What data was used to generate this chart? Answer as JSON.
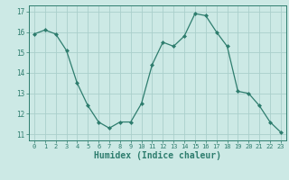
{
  "x": [
    0,
    1,
    2,
    3,
    4,
    5,
    6,
    7,
    8,
    9,
    10,
    11,
    12,
    13,
    14,
    15,
    16,
    17,
    18,
    19,
    20,
    21,
    22,
    23
  ],
  "y": [
    15.9,
    16.1,
    15.9,
    15.1,
    13.5,
    12.4,
    11.6,
    11.3,
    11.6,
    11.6,
    12.5,
    14.4,
    15.5,
    15.3,
    15.8,
    16.9,
    16.8,
    16.0,
    15.3,
    13.1,
    13.0,
    12.4,
    11.6,
    11.1
  ],
  "line_color": "#2e7d6e",
  "marker": "D",
  "marker_size": 2.0,
  "bg_color": "#cce9e5",
  "grid_color": "#aacfcb",
  "tick_color": "#2e7d6e",
  "xlabel": "Humidex (Indice chaleur)",
  "xlabel_fontsize": 7,
  "yticks": [
    11,
    12,
    13,
    14,
    15,
    16,
    17
  ],
  "xticks": [
    0,
    1,
    2,
    3,
    4,
    5,
    6,
    7,
    8,
    9,
    10,
    11,
    12,
    13,
    14,
    15,
    16,
    17,
    18,
    19,
    20,
    21,
    22,
    23
  ],
  "ylim": [
    10.7,
    17.3
  ],
  "xlim": [
    -0.5,
    23.5
  ]
}
